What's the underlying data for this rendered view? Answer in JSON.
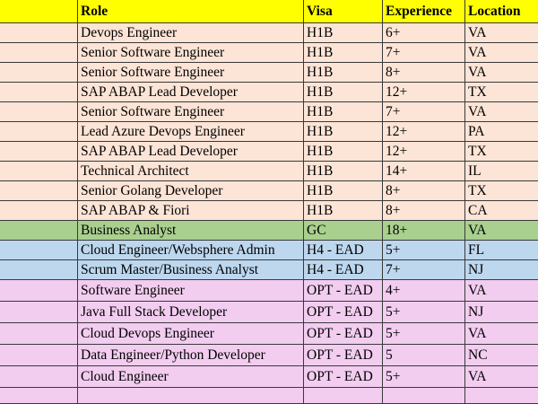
{
  "table": {
    "headers": [
      "",
      "Role",
      "Visa",
      "Experience",
      "Location"
    ],
    "rows": [
      {
        "role": "Devops Engineer",
        "visa": "H1B",
        "experience": "6+",
        "location": "VA",
        "group": "h1b"
      },
      {
        "role": "Senior Software Engineer",
        "visa": "H1B",
        "experience": "7+",
        "location": "VA",
        "group": "h1b"
      },
      {
        "role": "Senior Software Engineer",
        "visa": "H1B",
        "experience": "8+",
        "location": "VA",
        "group": "h1b"
      },
      {
        "role": "SAP ABAP Lead Developer",
        "visa": "H1B",
        "experience": "12+",
        "location": "TX",
        "group": "h1b"
      },
      {
        "role": "Senior Software Engineer",
        "visa": "H1B",
        "experience": "7+",
        "location": "VA",
        "group": "h1b"
      },
      {
        "role": "Lead Azure Devops Engineer",
        "visa": "H1B",
        "experience": "12+",
        "location": "PA",
        "group": "h1b"
      },
      {
        "role": "SAP ABAP Lead Developer",
        "visa": "H1B",
        "experience": "12+",
        "location": "TX",
        "group": "h1b"
      },
      {
        "role": "Technical Architect",
        "visa": "H1B",
        "experience": "14+",
        "location": "IL",
        "group": "h1b"
      },
      {
        "role": "Senior Golang Developer",
        "visa": "H1B",
        "experience": "8+",
        "location": "TX",
        "group": "h1b"
      },
      {
        "role": "SAP ABAP & Fiori",
        "visa": "H1B",
        "experience": "8+",
        "location": "CA",
        "group": "h1b"
      },
      {
        "role": "Business Analyst",
        "visa": "GC",
        "experience": "18+",
        "location": "VA",
        "group": "gc"
      },
      {
        "role": "Cloud Engineer/Websphere Admin",
        "visa": "H4 - EAD",
        "experience": "5+",
        "location": "FL",
        "group": "h4"
      },
      {
        "role": "Scrum Master/Business Analyst",
        "visa": "H4 - EAD",
        "experience": "7+",
        "location": "NJ",
        "group": "h4"
      },
      {
        "role": "Software Engineer",
        "visa": "OPT - EAD",
        "experience": "4+",
        "location": "VA",
        "group": "opt"
      },
      {
        "role": "Java Full Stack Developer",
        "visa": "OPT - EAD",
        "experience": "5+",
        "location": "NJ",
        "group": "opt"
      },
      {
        "role": "Cloud Devops Engineer",
        "visa": "OPT - EAD",
        "experience": "5+",
        "location": "VA",
        "group": "opt"
      },
      {
        "role": "Data Engineer/Python Developer",
        "visa": "OPT - EAD",
        "experience": "5",
        "location": "NC",
        "group": "opt"
      },
      {
        "role": "Cloud Engineer",
        "visa": "OPT - EAD",
        "experience": "5+",
        "location": "VA",
        "group": "opt"
      },
      {
        "role": "",
        "visa": "",
        "experience": "",
        "location": "",
        "group": "opt"
      }
    ]
  },
  "colors": {
    "header": "#ffff00",
    "h1b": "#fce4d6",
    "gc": "#a9d08e",
    "h4": "#bdd7ee",
    "opt": "#f2cdf0",
    "grid": "#3a3a3a"
  }
}
